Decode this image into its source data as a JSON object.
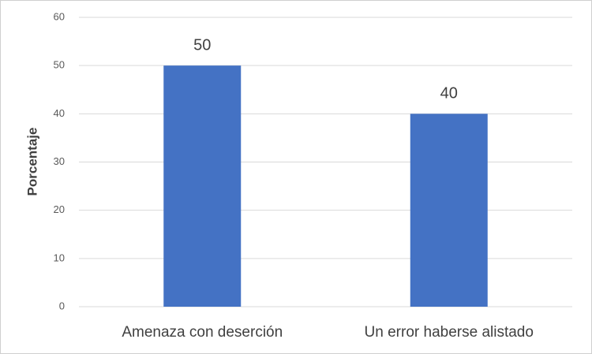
{
  "chart_data": {
    "type": "bar",
    "y_label": "Porcentaje",
    "categories": [
      "Amenaza con deserción",
      "Un error haberse alistado"
    ],
    "values": [
      50,
      40
    ],
    "color": "#4472c4",
    "ylim": [
      0,
      60
    ],
    "yticks": [
      0,
      10,
      20,
      30,
      40,
      50,
      60
    ],
    "grid": true
  }
}
